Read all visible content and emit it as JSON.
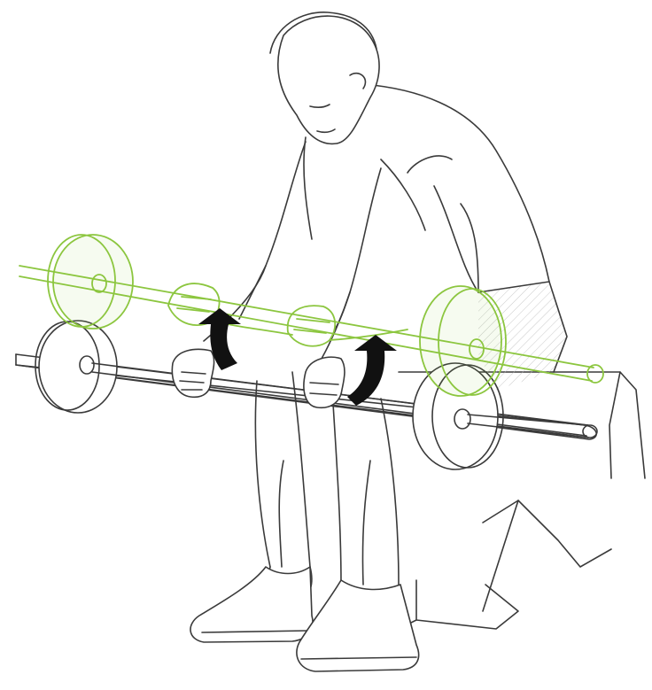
{
  "illustration": {
    "subject": "seated-barbell-wrist-curl",
    "colors": {
      "outline": "#3a3a3a",
      "highlight": "#8cc63f",
      "arrow": "#111111",
      "background": "#ffffff"
    },
    "icons": [
      "curved-up-arrow-icon",
      "curved-up-arrow-icon"
    ]
  }
}
